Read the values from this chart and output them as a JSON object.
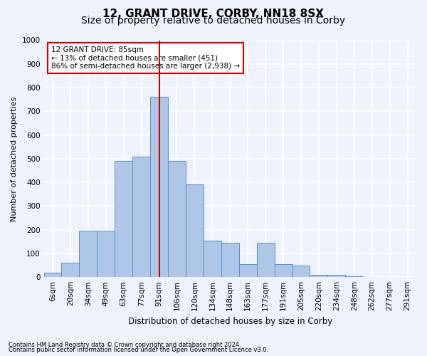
{
  "title_line1": "12, GRANT DRIVE, CORBY, NN18 8SX",
  "title_line2": "Size of property relative to detached houses in Corby",
  "xlabel": "Distribution of detached houses by size in Corby",
  "ylabel": "Number of detached properties",
  "footnote1": "Contains HM Land Registry data © Crown copyright and database right 2024.",
  "footnote2": "Contains public sector information licensed under the Open Government Licence v3.0.",
  "bar_labels": [
    "6sqm",
    "20sqm",
    "34sqm",
    "49sqm",
    "63sqm",
    "77sqm",
    "91sqm",
    "106sqm",
    "120sqm",
    "134sqm",
    "148sqm",
    "163sqm",
    "177sqm",
    "191sqm",
    "205sqm",
    "220sqm",
    "234sqm",
    "248sqm",
    "262sqm",
    "277sqm",
    "291sqm"
  ],
  "bar_values": [
    20,
    60,
    195,
    195,
    490,
    510,
    760,
    490,
    390,
    155,
    145,
    55,
    145,
    55,
    50,
    10,
    10,
    5,
    2,
    1,
    1
  ],
  "bar_color": "#aec6e8",
  "bar_edge_color": "#5b8ec4",
  "vline_x": 6.0,
  "vline_color": "#cc0000",
  "ylim": [
    0,
    1000
  ],
  "yticks": [
    0,
    100,
    200,
    300,
    400,
    500,
    600,
    700,
    800,
    900,
    1000
  ],
  "annotation_box_text": "12 GRANT DRIVE: 85sqm\n← 13% of detached houses are smaller (451)\n86% of semi-detached houses are larger (2,938) →",
  "annotation_box_color": "#cc0000",
  "annotation_box_facecolor": "white",
  "background_color": "#eef2fb",
  "grid_color": "white",
  "title_fontsize": 11,
  "subtitle_fontsize": 10,
  "axis_label_fontsize": 8.5,
  "ylabel_fontsize": 8,
  "tick_fontsize": 7.5,
  "annotation_fontsize": 7.5,
  "footnote_fontsize": 6
}
